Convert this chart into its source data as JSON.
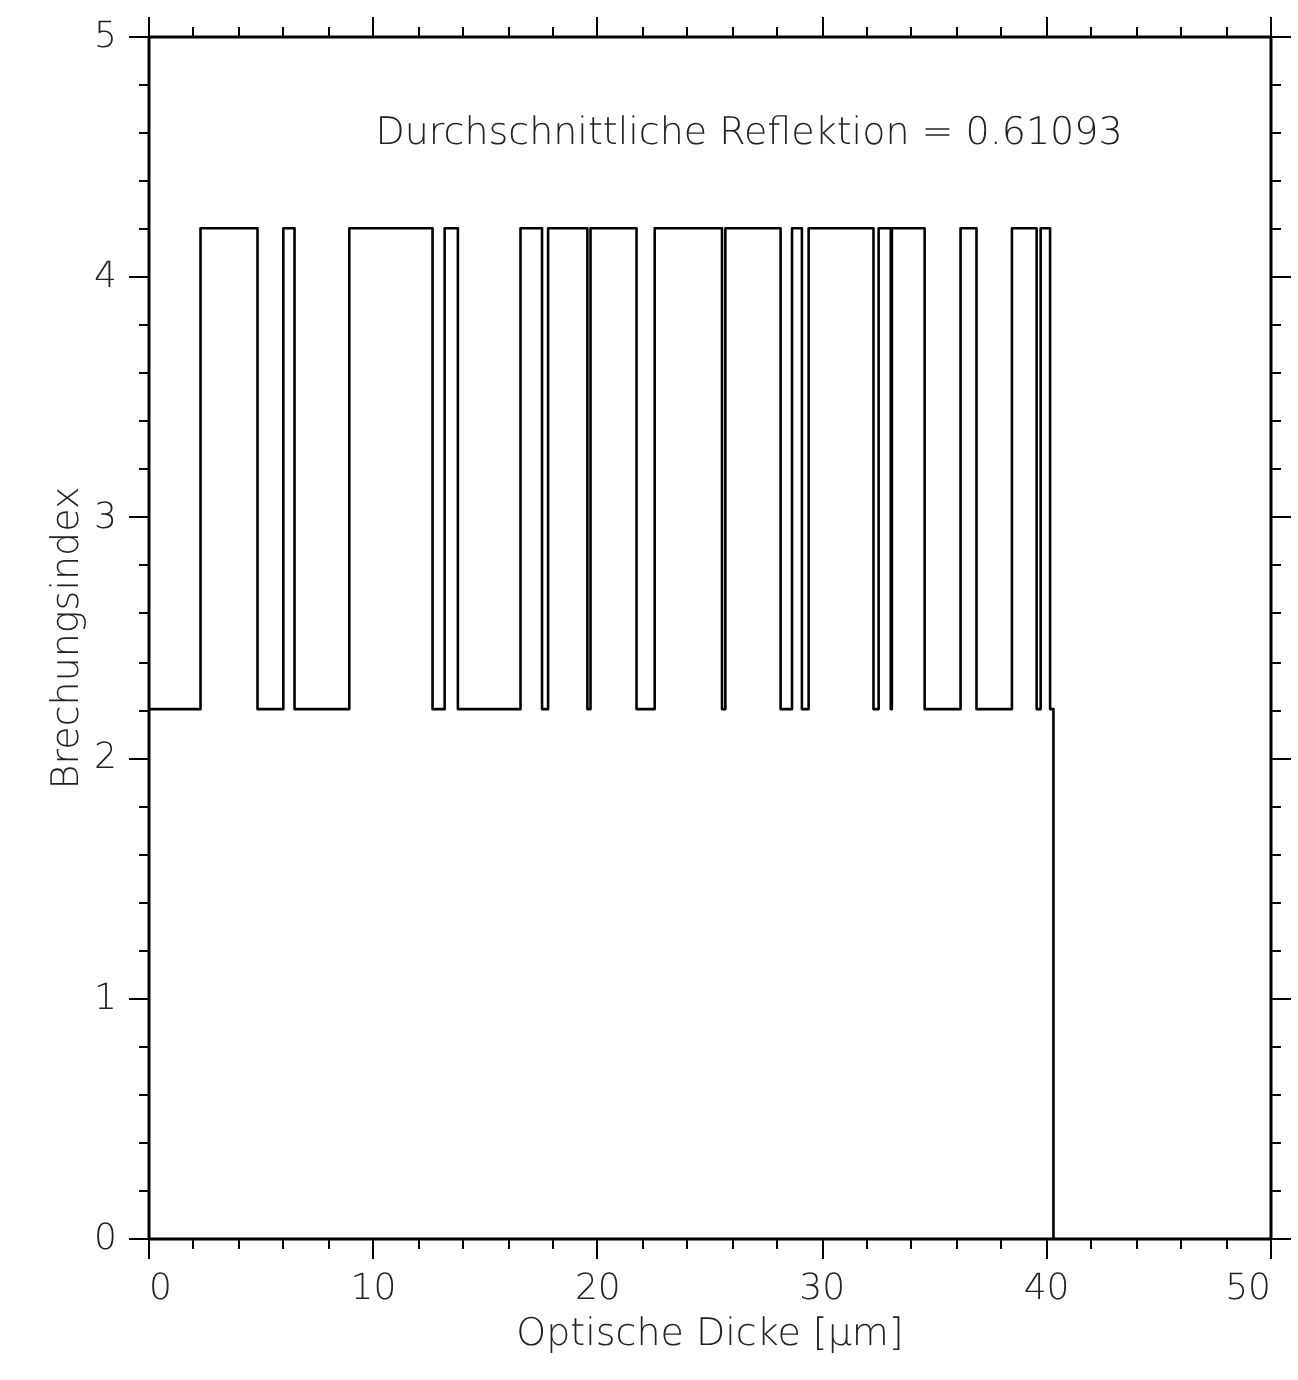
{
  "chart_data": {
    "type": "step",
    "xlabel": "Optische Dicke [μm]",
    "ylabel": "Brechungsindex",
    "annotations": [
      "Durchschnittliche Reflektion = 0.61093"
    ],
    "x": [
      0,
      2.34,
      4.88,
      6.03,
      6.53,
      8.97,
      12.68,
      13.22,
      13.81,
      16.6,
      17.56,
      17.83,
      19.58,
      19.72,
      21.77,
      22.58,
      25.58,
      25.73,
      28.19,
      28.7,
      29.14,
      29.44,
      32.33,
      32.56,
      33.1,
      33.15,
      34.61,
      36.21,
      36.92,
      38.5,
      39.6,
      39.78,
      40.2,
      40.35
    ],
    "series": [
      {
        "color": "#000000",
        "values": [
          2.2,
          4.2,
          2.2,
          4.2,
          2.2,
          4.2,
          2.2,
          4.2,
          2.2,
          4.2,
          2.2,
          4.2,
          2.2,
          4.2,
          2.2,
          4.2,
          2.2,
          4.2,
          2.2,
          4.2,
          2.2,
          4.2,
          2.2,
          4.2,
          2.2,
          4.2,
          2.2,
          4.2,
          2.2,
          4.2,
          2.2,
          4.2,
          2.2,
          0
        ]
      }
    ],
    "xlim": [
      0,
      50
    ],
    "xticks": [
      0,
      {
        "value": 2,
        "label": null
      },
      {
        "value": 4,
        "label": null
      },
      {
        "value": 6,
        "label": null
      },
      {
        "value": 8,
        "label": null
      },
      10,
      {
        "value": 12,
        "label": null
      },
      {
        "value": 14,
        "label": null
      },
      {
        "value": 16,
        "label": null
      },
      {
        "value": 18,
        "label": null
      },
      20,
      {
        "value": 22,
        "label": null
      },
      {
        "value": 24,
        "label": null
      },
      {
        "value": 26,
        "label": null
      },
      {
        "value": 28,
        "label": null
      },
      30,
      {
        "value": 32,
        "label": null
      },
      {
        "value": 34,
        "label": null
      },
      {
        "value": 36,
        "label": null
      },
      {
        "value": 38,
        "label": null
      },
      40,
      {
        "value": 42,
        "label": null
      },
      {
        "value": 44,
        "label": null
      },
      {
        "value": 46,
        "label": null
      },
      {
        "value": 48,
        "label": null
      },
      50
    ],
    "ylim": [
      0,
      5
    ],
    "yticks": [
      0,
      {
        "value": 0.2,
        "label": null
      },
      {
        "value": 0.4,
        "label": null
      },
      {
        "value": 0.6,
        "label": null
      },
      {
        "value": 0.8,
        "label": null
      },
      1,
      {
        "value": 1.2,
        "label": null
      },
      {
        "value": 1.4,
        "label": null
      },
      {
        "value": 1.6,
        "label": null
      },
      {
        "value": 1.8,
        "label": null
      },
      2,
      {
        "value": 2.2,
        "label": null
      },
      {
        "value": 2.4,
        "label": null
      },
      {
        "value": 2.6,
        "label": null
      },
      {
        "value": 2.8,
        "label": null
      },
      3,
      {
        "value": 3.2,
        "label": null
      },
      {
        "value": 3.4,
        "label": null
      },
      {
        "value": 3.6,
        "label": null
      },
      {
        "value": 3.8,
        "label": null
      },
      4,
      {
        "value": 4.2,
        "label": null
      },
      {
        "value": 4.4,
        "label": null
      },
      {
        "value": 4.6,
        "label": null
      },
      {
        "value": 4.8,
        "label": null
      },
      5
    ]
  }
}
